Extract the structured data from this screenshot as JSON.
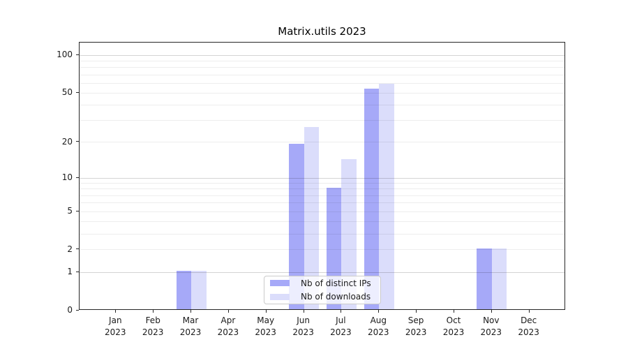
{
  "title": "Matrix.utils 2023",
  "colors": {
    "series_distinct_ips": "#a6a9f8",
    "series_downloads": "#dbddfb",
    "axis_spine": "#262626",
    "text": "#1a1a1a",
    "legend_border": "#cbcbcb"
  },
  "legend": {
    "items": [
      {
        "label": "Nb of distinct IPs",
        "color": "#a6a9f8"
      },
      {
        "label": "Nb of downloads",
        "color": "#dbddfb"
      }
    ]
  },
  "chart_data": {
    "type": "bar",
    "title": "Matrix.utils 2023",
    "xlabel": "",
    "ylabel": "",
    "yscale": "log1p",
    "ylim": [
      0,
      126
    ],
    "grid": true,
    "legend_position": "lower center (inside plot)",
    "categories": [
      "Jan 2023",
      "Feb 2023",
      "Mar 2023",
      "Apr 2023",
      "May 2023",
      "Jun 2023",
      "Jul 2023",
      "Aug 2023",
      "Sep 2023",
      "Oct 2023",
      "Nov 2023",
      "Dec 2023"
    ],
    "x_ticks": [
      {
        "month": "Jan",
        "year": "2023"
      },
      {
        "month": "Feb",
        "year": "2023"
      },
      {
        "month": "Mar",
        "year": "2023"
      },
      {
        "month": "Apr",
        "year": "2023"
      },
      {
        "month": "May",
        "year": "2023"
      },
      {
        "month": "Jun",
        "year": "2023"
      },
      {
        "month": "Jul",
        "year": "2023"
      },
      {
        "month": "Aug",
        "year": "2023"
      },
      {
        "month": "Sep",
        "year": "2023"
      },
      {
        "month": "Oct",
        "year": "2023"
      },
      {
        "month": "Nov",
        "year": "2023"
      },
      {
        "month": "Dec",
        "year": "2023"
      }
    ],
    "y_ticks": [
      0,
      1,
      2,
      5,
      10,
      20,
      50,
      100
    ],
    "y_tick_labels": [
      "0",
      "1",
      "2",
      "5",
      "10",
      "20",
      "50",
      "100"
    ],
    "grid_major_values": [
      1,
      10,
      100
    ],
    "grid_minor_values": [
      2,
      3,
      4,
      5,
      6,
      7,
      8,
      9,
      20,
      30,
      40,
      50,
      60,
      70,
      80,
      90
    ],
    "series": [
      {
        "name": "Nb of distinct IPs",
        "color": "#a6a9f8",
        "values": [
          0,
          0,
          1,
          0,
          0,
          19,
          8,
          53,
          0,
          0,
          2,
          0
        ]
      },
      {
        "name": "Nb of downloads",
        "color": "#dbddfb",
        "values": [
          0,
          0,
          1,
          0,
          0,
          26,
          14,
          58,
          0,
          0,
          2,
          0
        ]
      }
    ]
  }
}
